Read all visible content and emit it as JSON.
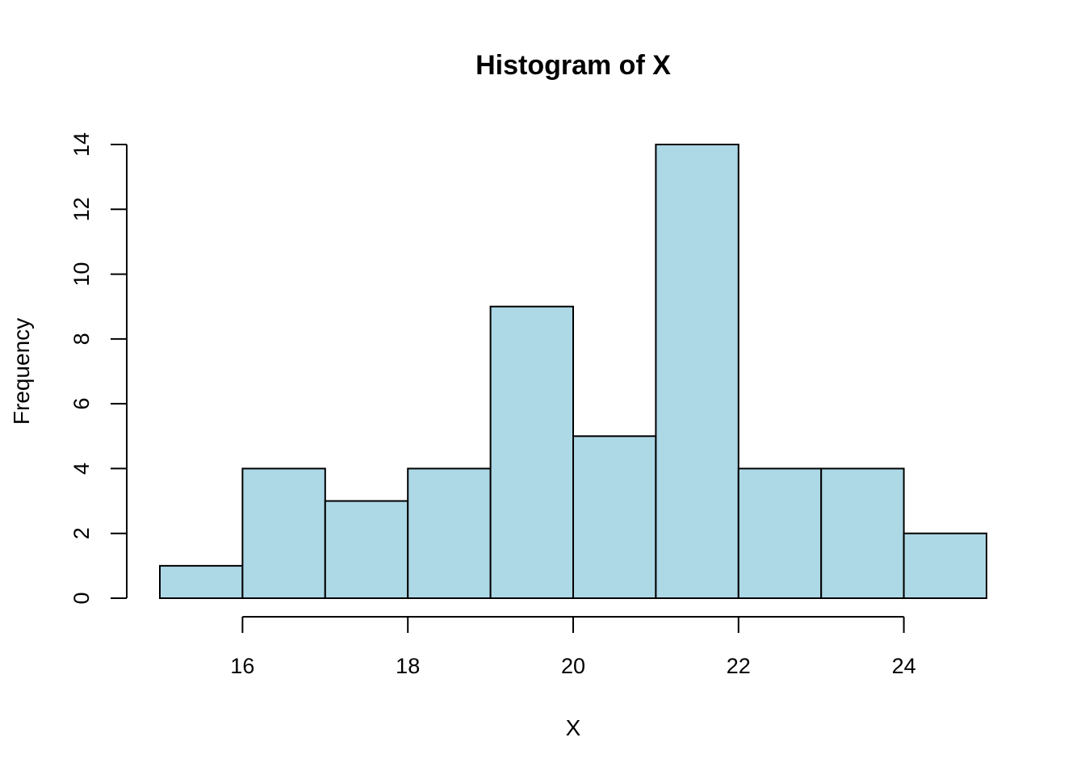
{
  "chart_data": {
    "type": "bar",
    "title": "Histogram of X",
    "xlabel": "X",
    "ylabel": "Frequency",
    "bins": [
      {
        "start": 15,
        "end": 16,
        "count": 1
      },
      {
        "start": 16,
        "end": 17,
        "count": 4
      },
      {
        "start": 17,
        "end": 18,
        "count": 3
      },
      {
        "start": 18,
        "end": 19,
        "count": 4
      },
      {
        "start": 19,
        "end": 20,
        "count": 9
      },
      {
        "start": 20,
        "end": 21,
        "count": 5
      },
      {
        "start": 21,
        "end": 22,
        "count": 14
      },
      {
        "start": 22,
        "end": 23,
        "count": 4
      },
      {
        "start": 23,
        "end": 24,
        "count": 4
      },
      {
        "start": 24,
        "end": 25,
        "count": 2
      }
    ],
    "xticks": [
      16,
      18,
      20,
      22,
      24
    ],
    "yticks": [
      0,
      2,
      4,
      6,
      8,
      10,
      12,
      14
    ],
    "xlim": [
      15,
      25
    ],
    "ylim": [
      0,
      14
    ],
    "bar_color": "#add8e6",
    "grid": false
  }
}
